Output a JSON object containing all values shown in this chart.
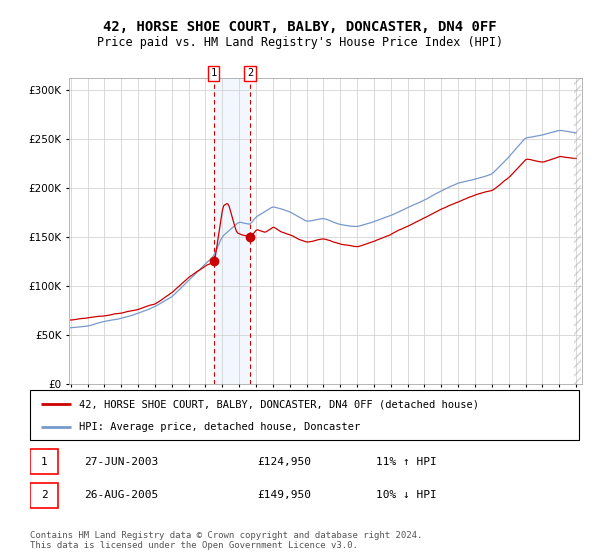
{
  "title": "42, HORSE SHOE COURT, BALBY, DONCASTER, DN4 0FF",
  "subtitle": "Price paid vs. HM Land Registry's House Price Index (HPI)",
  "legend_line1": "42, HORSE SHOE COURT, BALBY, DONCASTER, DN4 0FF (detached house)",
  "legend_line2": "HPI: Average price, detached house, Doncaster",
  "transaction1_date": "27-JUN-2003",
  "transaction1_price": 124950,
  "transaction1_hpi": "11% ↑ HPI",
  "transaction2_date": "26-AUG-2005",
  "transaction2_price": 149950,
  "transaction2_hpi": "10% ↓ HPI",
  "footer": "Contains HM Land Registry data © Crown copyright and database right 2024.\nThis data is licensed under the Open Government Licence v3.0.",
  "hpi_color": "#7799cc",
  "price_color": "#cc0000",
  "marker_color": "#cc0000",
  "background_color": "#ffffff",
  "grid_color": "#cccccc",
  "highlight_color": "#cce0ff",
  "vline_color": "#cc0000",
  "ylabel_start": 0,
  "ylabel_end": 300000,
  "ylabel_step": 50000,
  "xstart_year": 1995,
  "xend_year": 2025,
  "transaction1_year": 2003.49,
  "transaction2_year": 2005.65,
  "title_fontsize": 10,
  "subtitle_fontsize": 8.5,
  "tick_fontsize": 7.5,
  "legend_fontsize": 7.5,
  "footer_fontsize": 6.5
}
